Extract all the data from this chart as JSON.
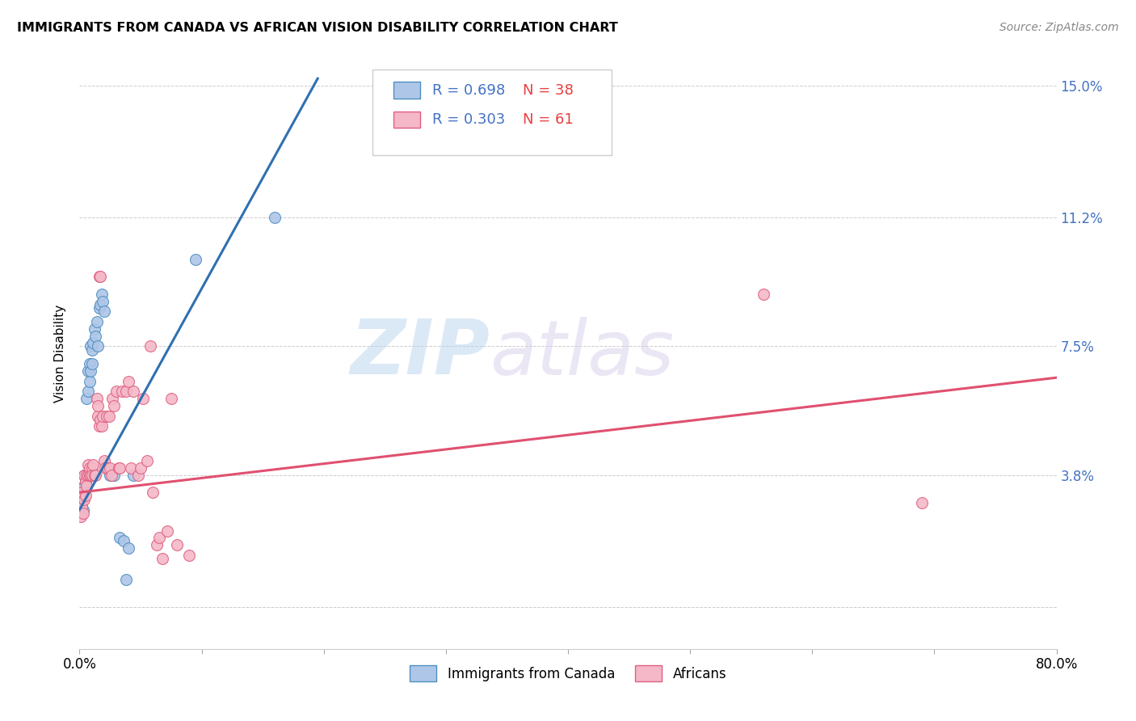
{
  "title": "IMMIGRANTS FROM CANADA VS AFRICAN VISION DISABILITY CORRELATION CHART",
  "source": "Source: ZipAtlas.com",
  "ylabel": "Vision Disability",
  "yticks": [
    0.0,
    0.038,
    0.075,
    0.112,
    0.15
  ],
  "ytick_labels": [
    "",
    "3.8%",
    "7.5%",
    "11.2%",
    "15.0%"
  ],
  "xlim": [
    0.0,
    0.8
  ],
  "ylim": [
    -0.012,
    0.158
  ],
  "legend_r1": "R = 0.698",
  "legend_n1": "N = 38",
  "legend_r2": "R = 0.303",
  "legend_n2": "N = 61",
  "watermark_zip": "ZIP",
  "watermark_atlas": "atlas",
  "blue_color": "#aec6e8",
  "pink_color": "#f4b8c8",
  "blue_edge_color": "#4f8fc0",
  "pink_edge_color": "#e06080",
  "blue_line_color": "#3070b0",
  "pink_line_color": "#e05070",
  "blue_scatter": [
    [
      0.001,
      0.032
    ],
    [
      0.002,
      0.03
    ],
    [
      0.003,
      0.028
    ],
    [
      0.003,
      0.033
    ],
    [
      0.004,
      0.035
    ],
    [
      0.004,
      0.038
    ],
    [
      0.005,
      0.036
    ],
    [
      0.005,
      0.034
    ],
    [
      0.006,
      0.038
    ],
    [
      0.006,
      0.06
    ],
    [
      0.007,
      0.062
    ],
    [
      0.007,
      0.068
    ],
    [
      0.008,
      0.065
    ],
    [
      0.008,
      0.07
    ],
    [
      0.009,
      0.068
    ],
    [
      0.009,
      0.075
    ],
    [
      0.01,
      0.07
    ],
    [
      0.01,
      0.074
    ],
    [
      0.011,
      0.076
    ],
    [
      0.012,
      0.08
    ],
    [
      0.013,
      0.078
    ],
    [
      0.014,
      0.082
    ],
    [
      0.015,
      0.075
    ],
    [
      0.016,
      0.086
    ],
    [
      0.017,
      0.087
    ],
    [
      0.018,
      0.09
    ],
    [
      0.019,
      0.088
    ],
    [
      0.02,
      0.085
    ],
    [
      0.022,
      0.04
    ],
    [
      0.025,
      0.038
    ],
    [
      0.028,
      0.038
    ],
    [
      0.033,
      0.02
    ],
    [
      0.036,
      0.019
    ],
    [
      0.038,
      0.008
    ],
    [
      0.04,
      0.017
    ],
    [
      0.044,
      0.038
    ],
    [
      0.095,
      0.1
    ],
    [
      0.16,
      0.112
    ]
  ],
  "pink_scatter": [
    [
      0.001,
      0.026
    ],
    [
      0.002,
      0.029
    ],
    [
      0.002,
      0.033
    ],
    [
      0.003,
      0.027
    ],
    [
      0.004,
      0.031
    ],
    [
      0.004,
      0.038
    ],
    [
      0.005,
      0.032
    ],
    [
      0.005,
      0.036
    ],
    [
      0.006,
      0.038
    ],
    [
      0.006,
      0.035
    ],
    [
      0.007,
      0.038
    ],
    [
      0.007,
      0.041
    ],
    [
      0.008,
      0.038
    ],
    [
      0.008,
      0.04
    ],
    [
      0.009,
      0.038
    ],
    [
      0.01,
      0.04
    ],
    [
      0.01,
      0.038
    ],
    [
      0.011,
      0.041
    ],
    [
      0.012,
      0.038
    ],
    [
      0.013,
      0.038
    ],
    [
      0.014,
      0.06
    ],
    [
      0.015,
      0.055
    ],
    [
      0.015,
      0.058
    ],
    [
      0.016,
      0.052
    ],
    [
      0.016,
      0.095
    ],
    [
      0.017,
      0.054
    ],
    [
      0.017,
      0.095
    ],
    [
      0.018,
      0.052
    ],
    [
      0.019,
      0.055
    ],
    [
      0.02,
      0.042
    ],
    [
      0.021,
      0.04
    ],
    [
      0.022,
      0.055
    ],
    [
      0.023,
      0.04
    ],
    [
      0.024,
      0.055
    ],
    [
      0.025,
      0.04
    ],
    [
      0.026,
      0.038
    ],
    [
      0.027,
      0.06
    ],
    [
      0.028,
      0.058
    ],
    [
      0.03,
      0.062
    ],
    [
      0.032,
      0.04
    ],
    [
      0.033,
      0.04
    ],
    [
      0.035,
      0.062
    ],
    [
      0.038,
      0.062
    ],
    [
      0.04,
      0.065
    ],
    [
      0.042,
      0.04
    ],
    [
      0.044,
      0.062
    ],
    [
      0.048,
      0.038
    ],
    [
      0.05,
      0.04
    ],
    [
      0.052,
      0.06
    ],
    [
      0.055,
      0.042
    ],
    [
      0.058,
      0.075
    ],
    [
      0.06,
      0.033
    ],
    [
      0.063,
      0.018
    ],
    [
      0.065,
      0.02
    ],
    [
      0.068,
      0.014
    ],
    [
      0.072,
      0.022
    ],
    [
      0.075,
      0.06
    ],
    [
      0.08,
      0.018
    ],
    [
      0.09,
      0.015
    ],
    [
      0.56,
      0.09
    ],
    [
      0.69,
      0.03
    ]
  ],
  "blue_trend_x": [
    0.0,
    0.195
  ],
  "blue_trend_y": [
    0.028,
    0.152
  ],
  "pink_trend_x": [
    0.0,
    0.8
  ],
  "pink_trend_y": [
    0.033,
    0.066
  ],
  "background_color": "#ffffff",
  "grid_color": "#cccccc",
  "title_fontsize": 11.5,
  "source_fontsize": 10,
  "tick_fontsize": 12,
  "ylabel_fontsize": 11
}
